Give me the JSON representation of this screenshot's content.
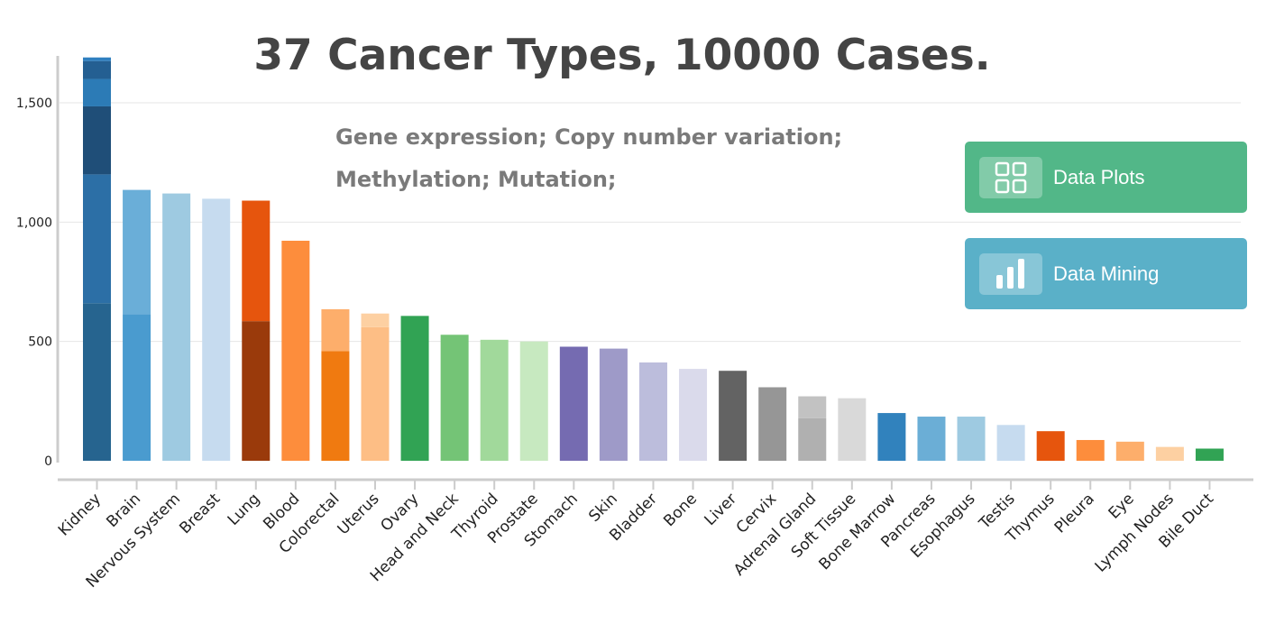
{
  "header": {
    "title": "37 Cancer Types, 10000 Cases.",
    "subtitle_line1": "Gene expression; Copy number variation;",
    "subtitle_line2": "Methylation; Mutation;"
  },
  "actions": {
    "data_plots": {
      "label": "Data Plots",
      "icon": "grid-icon",
      "color": "#52b788"
    },
    "data_mining": {
      "label": "Data Mining",
      "icon": "bar-chart-icon",
      "color": "#5ab0c8"
    }
  },
  "chart_data": {
    "type": "bar",
    "stacked": true,
    "title": "",
    "xlabel": "",
    "ylabel": "",
    "ylim": [
      0,
      1700
    ],
    "yticks": [
      0,
      500,
      1000,
      1500
    ],
    "ytick_labels": [
      "0",
      "500",
      "1,000",
      "1,500"
    ],
    "grid": true,
    "categories": [
      "Kidney",
      "Brain",
      "Nervous System",
      "Breast",
      "Lung",
      "Blood",
      "Colorectal",
      "Uterus",
      "Ovary",
      "Head and Neck",
      "Thyroid",
      "Prostate",
      "Stomach",
      "Skin",
      "Bladder",
      "Bone",
      "Liver",
      "Cervix",
      "Adrenal Gland",
      "Soft Tissue",
      "Bone Marrow",
      "Pancreas",
      "Esophagus",
      "Testis",
      "Thymus",
      "Pleura",
      "Eye",
      "Lymph Nodes",
      "Bile Duct"
    ],
    "bars": [
      {
        "category": "Kidney",
        "segments": [
          {
            "value": 660,
            "color": "#26648f"
          },
          {
            "value": 540,
            "color": "#2c6fa6"
          },
          {
            "value": 285,
            "color": "#1f4e78"
          },
          {
            "value": 115,
            "color": "#2c7bb6"
          },
          {
            "value": 75,
            "color": "#245f92"
          },
          {
            "value": 15,
            "color": "#2f80c0"
          }
        ]
      },
      {
        "category": "Brain",
        "segments": [
          {
            "value": 615,
            "color": "#4a9bcf"
          },
          {
            "value": 520,
            "color": "#6aaed8"
          }
        ]
      },
      {
        "category": "Nervous System",
        "segments": [
          {
            "value": 1120,
            "color": "#9ecae1"
          }
        ]
      },
      {
        "category": "Breast",
        "segments": [
          {
            "value": 1098,
            "color": "#c6dbef"
          }
        ]
      },
      {
        "category": "Lung",
        "segments": [
          {
            "value": 585,
            "color": "#9a3a0b"
          },
          {
            "value": 505,
            "color": "#e6550d"
          }
        ]
      },
      {
        "category": "Blood",
        "segments": [
          {
            "value": 922,
            "color": "#fd8d3c"
          }
        ]
      },
      {
        "category": "Colorectal",
        "segments": [
          {
            "value": 460,
            "color": "#f07a10"
          },
          {
            "value": 175,
            "color": "#fdae6b"
          }
        ]
      },
      {
        "category": "Uterus",
        "segments": [
          {
            "value": 560,
            "color": "#fdbe85"
          },
          {
            "value": 57,
            "color": "#fdd0a2"
          }
        ]
      },
      {
        "category": "Ovary",
        "segments": [
          {
            "value": 607,
            "color": "#31a354"
          }
        ]
      },
      {
        "category": "Head and Neck",
        "segments": [
          {
            "value": 528,
            "color": "#74c476"
          }
        ]
      },
      {
        "category": "Thyroid",
        "segments": [
          {
            "value": 507,
            "color": "#a1d99b"
          }
        ]
      },
      {
        "category": "Prostate",
        "segments": [
          {
            "value": 500,
            "color": "#c7e9c0"
          }
        ]
      },
      {
        "category": "Stomach",
        "segments": [
          {
            "value": 478,
            "color": "#756bb1"
          }
        ]
      },
      {
        "category": "Skin",
        "segments": [
          {
            "value": 470,
            "color": "#9e9ac8"
          }
        ]
      },
      {
        "category": "Bladder",
        "segments": [
          {
            "value": 412,
            "color": "#bcbddc"
          }
        ]
      },
      {
        "category": "Bone",
        "segments": [
          {
            "value": 385,
            "color": "#dadaeb"
          }
        ]
      },
      {
        "category": "Liver",
        "segments": [
          {
            "value": 377,
            "color": "#636363"
          }
        ]
      },
      {
        "category": "Cervix",
        "segments": [
          {
            "value": 308,
            "color": "#969696"
          }
        ]
      },
      {
        "category": "Adrenal Gland",
        "segments": [
          {
            "value": 178,
            "color": "#b0b0b0"
          },
          {
            "value": 92,
            "color": "#c2c2c2"
          }
        ]
      },
      {
        "category": "Soft Tissue",
        "segments": [
          {
            "value": 262,
            "color": "#d9d9d9"
          }
        ]
      },
      {
        "category": "Bone Marrow",
        "segments": [
          {
            "value": 200,
            "color": "#3182bd"
          }
        ]
      },
      {
        "category": "Pancreas",
        "segments": [
          {
            "value": 185,
            "color": "#6baed6"
          }
        ]
      },
      {
        "category": "Esophagus",
        "segments": [
          {
            "value": 185,
            "color": "#9ecae1"
          }
        ]
      },
      {
        "category": "Testis",
        "segments": [
          {
            "value": 150,
            "color": "#c6dbef"
          }
        ]
      },
      {
        "category": "Thymus",
        "segments": [
          {
            "value": 124,
            "color": "#e6550d"
          }
        ]
      },
      {
        "category": "Pleura",
        "segments": [
          {
            "value": 87,
            "color": "#fd8d3c"
          }
        ]
      },
      {
        "category": "Eye",
        "segments": [
          {
            "value": 80,
            "color": "#fdae6b"
          }
        ]
      },
      {
        "category": "Lymph Nodes",
        "segments": [
          {
            "value": 58,
            "color": "#fdd0a2"
          }
        ]
      },
      {
        "category": "Bile Duct",
        "segments": [
          {
            "value": 51,
            "color": "#31a354"
          }
        ]
      }
    ]
  }
}
